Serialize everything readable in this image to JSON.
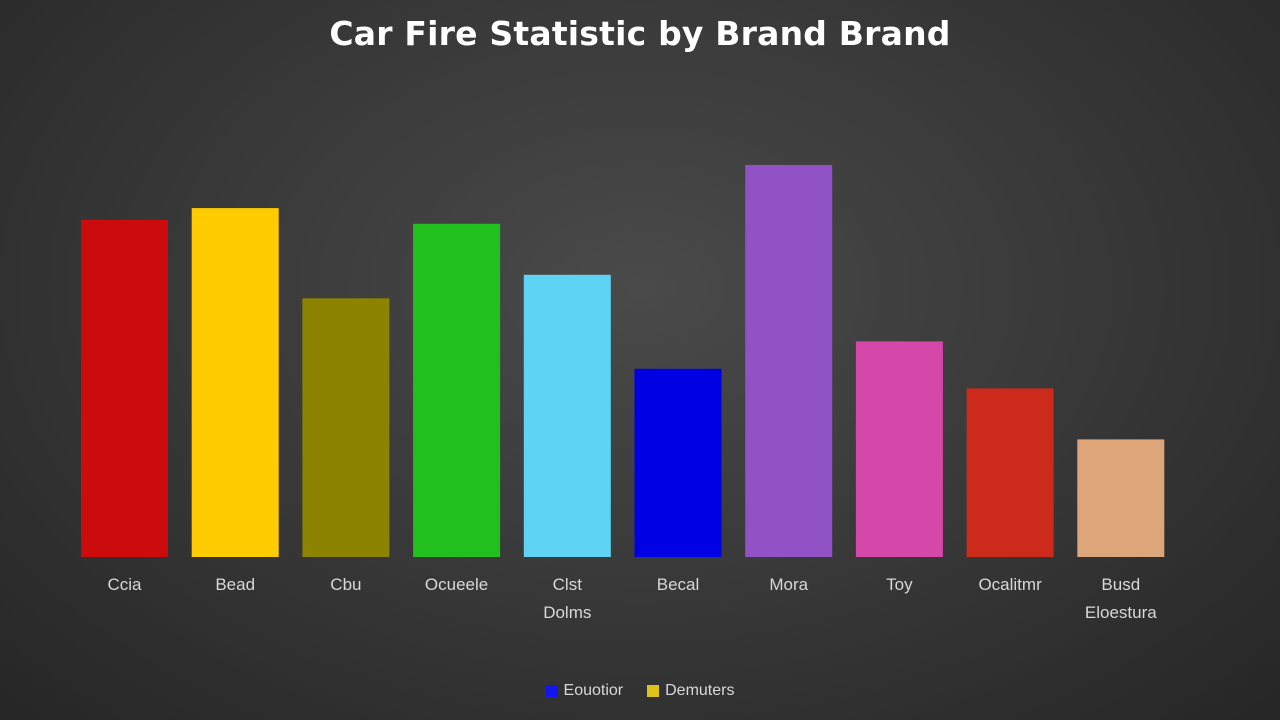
{
  "chart_data": {
    "type": "bar",
    "title": "Car Fire Statistic by Brand Brand",
    "xlabel": "",
    "ylabel": "",
    "ylim": [
      0,
      100
    ],
    "grid": false,
    "legend_position": "bottom",
    "categories": [
      [
        "Ccia"
      ],
      [
        "Bead"
      ],
      [
        "Cbu"
      ],
      [
        "Ocueele"
      ],
      [
        "Clst",
        "Dolms"
      ],
      [
        "Becal"
      ],
      [
        "Mora"
      ],
      [
        "Toy"
      ],
      [
        "Ocalitmr"
      ],
      [
        "Busd",
        "Eloestura"
      ]
    ],
    "values": [
      86,
      89,
      66,
      85,
      72,
      48,
      100,
      55,
      43,
      30
    ],
    "colors": [
      "#cc0c0c",
      "#ffcc00",
      "#8c8300",
      "#22c01e",
      "#5fd3f4",
      "#0000e4",
      "#9052c4",
      "#d548aa",
      "#cc2b1c",
      "#dca57a"
    ],
    "legend": [
      {
        "label": "Eouotior",
        "color": "#1515ee"
      },
      {
        "label": "Demuters",
        "color": "#e0c21a"
      }
    ]
  }
}
